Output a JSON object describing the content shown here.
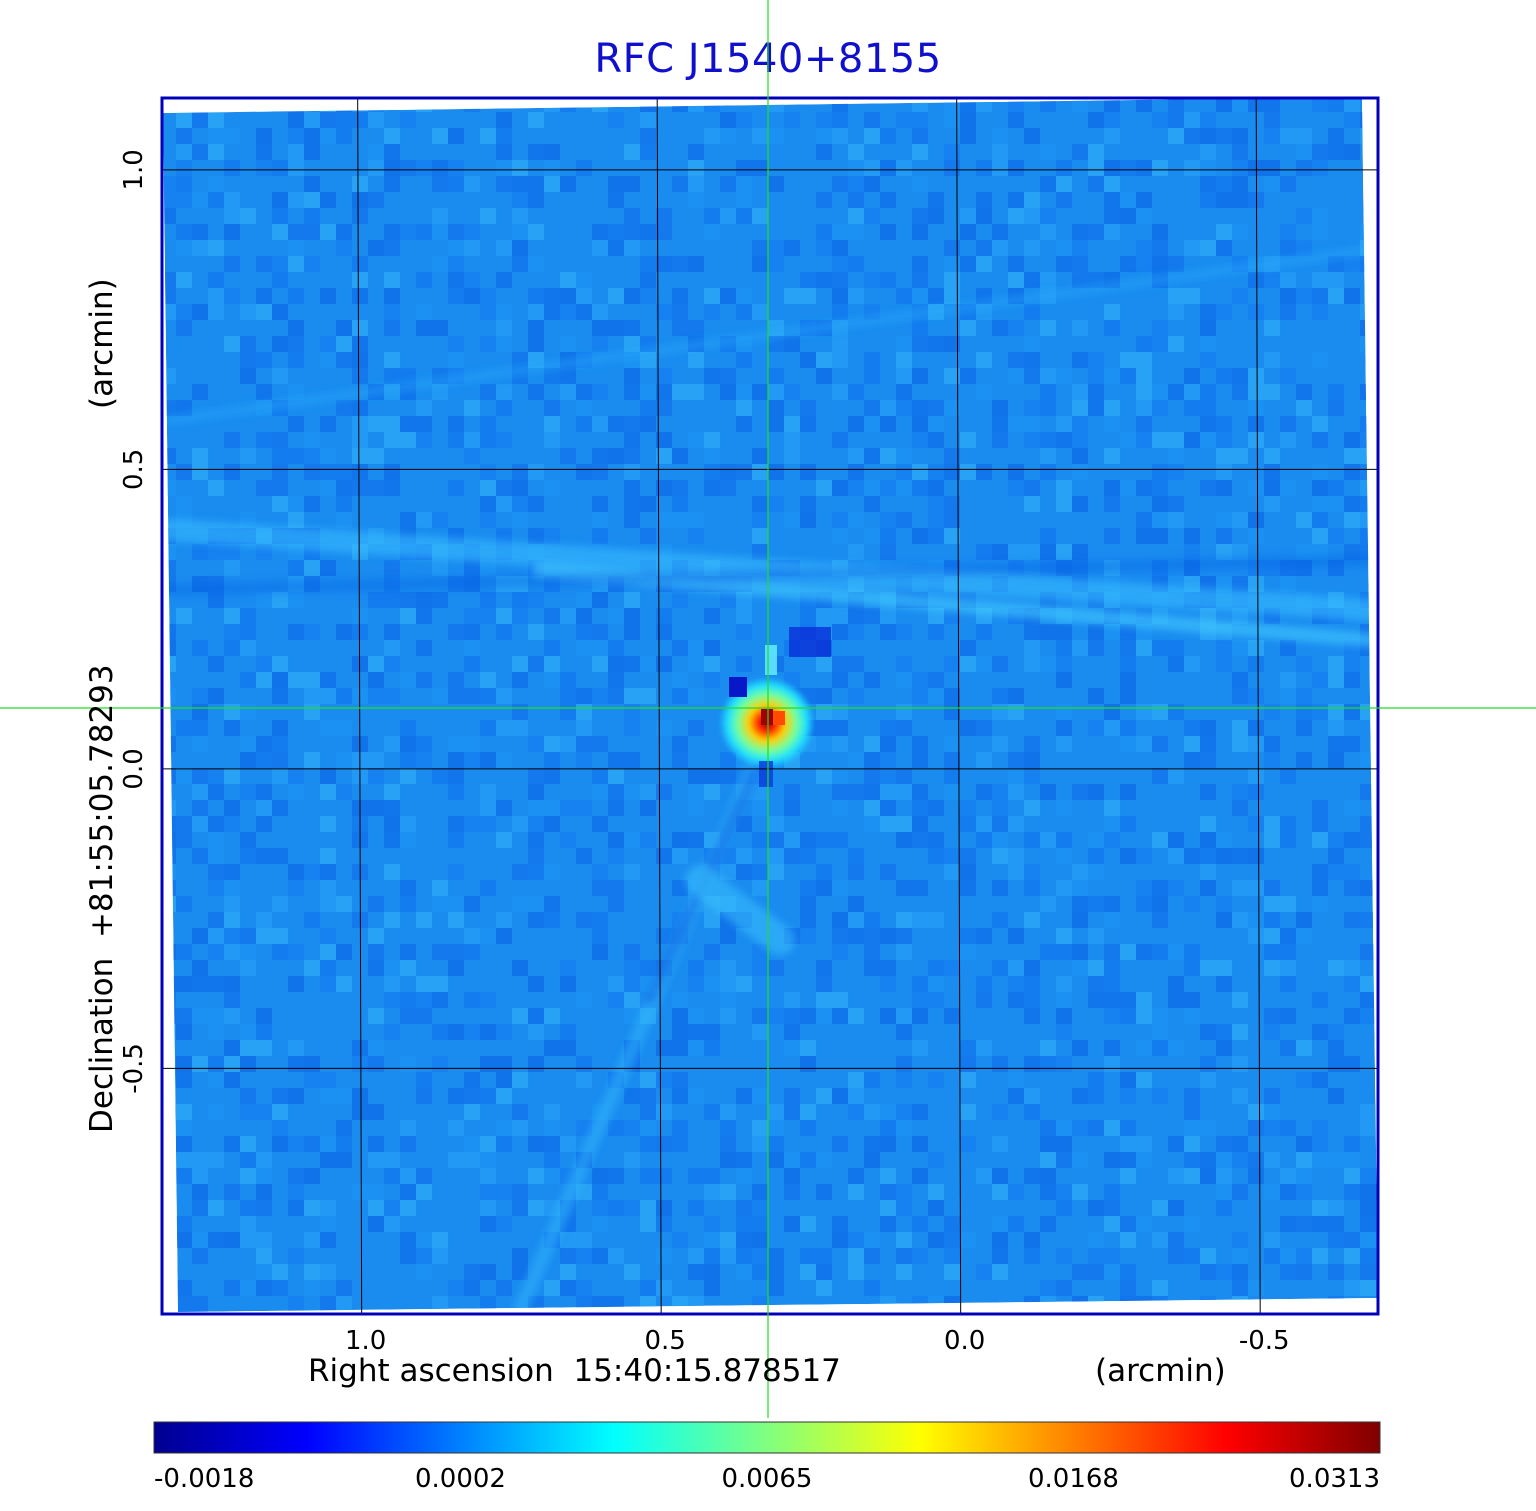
{
  "chart_data": {
    "type": "heatmap",
    "title": "RFC J1540+8155",
    "xlabel": "Right ascension  15:40:15.878517",
    "xunit": "(arcmin)",
    "ylabel": "Declination  +81:55:05.78293",
    "yunit": "(arcmin)",
    "x_ticks": [
      "1.0",
      "0.5",
      "0.0",
      "-0.5"
    ],
    "x_tick_values": [
      1.0,
      0.5,
      0.0,
      -0.5
    ],
    "y_ticks": [
      "1.0",
      "0.5",
      "0.0",
      "-0.5"
    ],
    "y_tick_values": [
      1.0,
      0.5,
      0.0,
      -0.5
    ],
    "xlim": [
      1.33,
      -0.7
    ],
    "ylim": [
      -0.91,
      1.12
    ],
    "grid": true,
    "source_peak": {
      "x": 0.32,
      "y": 0.09,
      "value": 0.0313
    },
    "crosshair": {
      "x": 0.315,
      "y": 0.1
    },
    "colorbar": {
      "ticks": [
        "-0.0018",
        "0.0002",
        "0.0065",
        "0.0168",
        "0.0313"
      ],
      "range": [
        -0.0018,
        0.0313
      ],
      "colormap": [
        "#00008f",
        "#0000ff",
        "#0080ff",
        "#00ffff",
        "#80ff80",
        "#ffff00",
        "#ff8000",
        "#ff0000",
        "#800000"
      ]
    }
  },
  "colors": {
    "frame": "#0000bb",
    "title": "#1010cc",
    "grid": "#000000",
    "crosshair": "#22dd22",
    "background": "#1a8cf0"
  }
}
